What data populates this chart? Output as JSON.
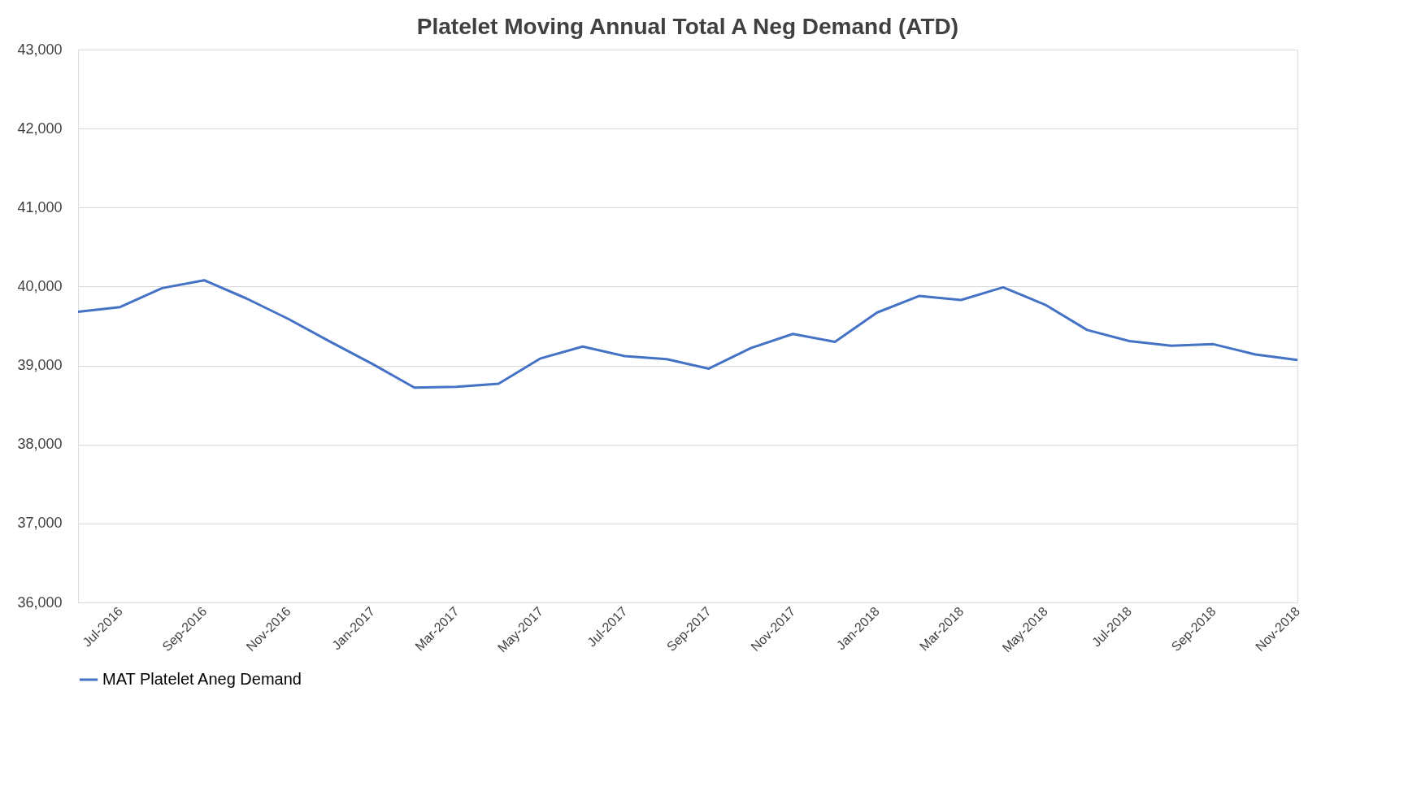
{
  "chart_data": {
    "type": "line",
    "title": "Platelet Moving Annual Total A Neg Demand (ATD)",
    "categories": [
      null,
      "Jul-2016",
      null,
      "Sep-2016",
      null,
      "Nov-2016",
      null,
      "Jan-2017",
      null,
      "Mar-2017",
      null,
      "May-2017",
      null,
      "Jul-2017",
      null,
      "Sep-2017",
      null,
      "Nov-2017",
      null,
      "Jan-2018",
      null,
      "Mar-2018",
      null,
      "May-2018",
      null,
      "Jul-2018",
      null,
      "Sep-2018",
      null,
      "Nov-2018"
    ],
    "series": [
      {
        "name": "MAT Platelet Aneg Demand",
        "color": "#4472c4",
        "values": [
          39680,
          39740,
          39980,
          40080,
          39850,
          39590,
          39300,
          39020,
          38720,
          38730,
          38770,
          39090,
          39240,
          39120,
          39080,
          38960,
          39220,
          39400,
          39300,
          39670,
          39880,
          39830,
          39990,
          39770,
          39450,
          39310,
          39250,
          39270,
          39140,
          39070
        ]
      }
    ],
    "ylim": [
      36000,
      43000
    ],
    "yticks": [
      {
        "value": 36000,
        "label": "36,000"
      },
      {
        "value": 37000,
        "label": "37,000"
      },
      {
        "value": 38000,
        "label": "38,000"
      },
      {
        "value": 39000,
        "label": "39,000"
      },
      {
        "value": 40000,
        "label": "40,000"
      },
      {
        "value": 41000,
        "label": "41,000"
      },
      {
        "value": 42000,
        "label": "42,000"
      },
      {
        "value": 43000,
        "label": "43,000"
      }
    ],
    "grid": "y",
    "legend": "bottom",
    "marker": "none",
    "line_style": "solid"
  }
}
